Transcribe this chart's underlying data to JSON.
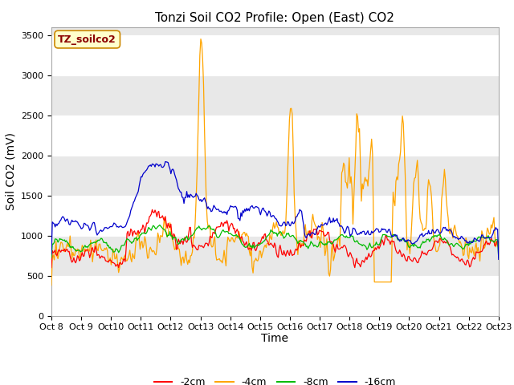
{
  "title": "Tonzi Soil CO2 Profile: Open (East) CO2",
  "ylabel": "Soil CO2 (mV)",
  "xlabel": "Time",
  "box_label": "TZ_soilco2",
  "ylim": [
    0,
    3600
  ],
  "yticks": [
    0,
    500,
    1000,
    1500,
    2000,
    2500,
    3000,
    3500
  ],
  "xtick_labels": [
    "Oct 8",
    "Oct 9",
    "Oct 10",
    "Oct 11",
    "Oct 12",
    "Oct 13",
    "Oct 14",
    "Oct 15",
    "Oct 16",
    "Oct 17",
    "Oct 18",
    "Oct 19",
    "Oct 20",
    "Oct 21",
    "Oct 22",
    "Oct 23"
  ],
  "colors": {
    "red": "#ff0000",
    "orange": "#ffa500",
    "green": "#00bb00",
    "blue": "#0000cc"
  },
  "legend_labels": [
    "-2cm",
    "-4cm",
    "-8cm",
    "-16cm"
  ],
  "background_plot": "#e8e8e8",
  "background_fig": "#ffffff",
  "title_fontsize": 11,
  "label_fontsize": 10,
  "tick_fontsize": 8,
  "legend_fontsize": 9
}
